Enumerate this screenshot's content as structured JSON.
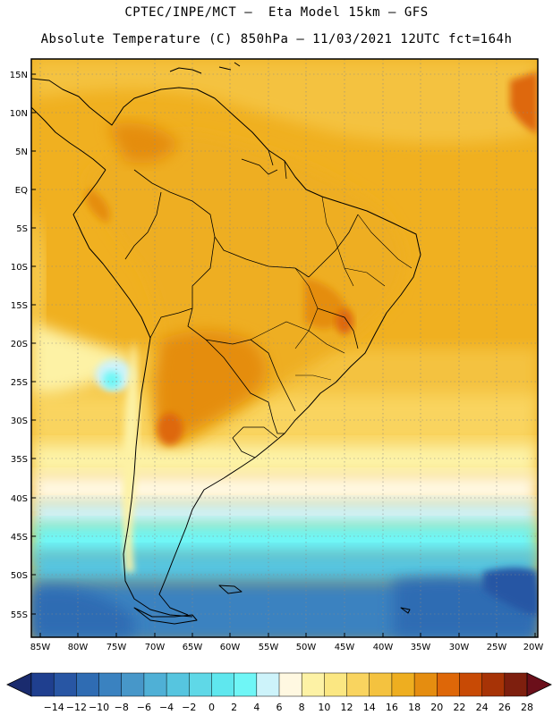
{
  "header": {
    "line1": "CPTEC/INPE/MCT –  Eta Model 15km – GFS",
    "line2": "Absolute Temperature (C) 850hPa – 11/03/2021 12UTC fct=164h"
  },
  "map": {
    "lat_labels": [
      "15N",
      "10N",
      "5N",
      "EQ",
      "5S",
      "10S",
      "15S",
      "20S",
      "25S",
      "30S",
      "35S",
      "40S",
      "45S",
      "50S",
      "55S"
    ],
    "lon_labels": [
      "85W",
      "80W",
      "75W",
      "70W",
      "65W",
      "60W",
      "55W",
      "50W",
      "45W",
      "40W",
      "35W",
      "30W",
      "25W",
      "20W"
    ],
    "lat_range": [
      -57,
      16
    ],
    "lon_range": [
      -86,
      -19
    ],
    "gridlines": "dotted"
  },
  "colorbar": {
    "labels": [
      "-14",
      "-12",
      "-10",
      "-8",
      "-6",
      "-4",
      "-2",
      "0",
      "2",
      "4",
      "6",
      "8",
      "10",
      "12",
      "14",
      "16",
      "18",
      "20",
      "22",
      "24",
      "26",
      "28"
    ],
    "colors": [
      "#1f3f8f",
      "#2856a4",
      "#2f6cb3",
      "#3a82c0",
      "#4797c9",
      "#4fb0d6",
      "#56c5df",
      "#5fd8e7",
      "#5fe7ee",
      "#6ff6f6",
      "#cdf3fa",
      "#fff8e1",
      "#fdf2a5",
      "#fbe782",
      "#f9d45f",
      "#f4c23f",
      "#eeae20",
      "#e58d10",
      "#de6708",
      "#c84a05",
      "#a73306",
      "#7e1f0e"
    ],
    "arrow_left_color": "#1a2b6e",
    "arrow_right_color": "#6b0f1a",
    "unit": "C"
  }
}
